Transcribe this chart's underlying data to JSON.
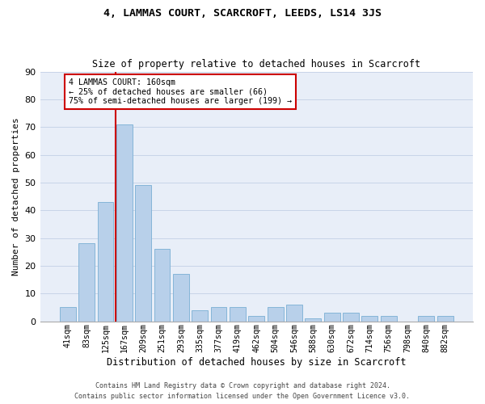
{
  "title": "4, LAMMAS COURT, SCARCROFT, LEEDS, LS14 3JS",
  "subtitle": "Size of property relative to detached houses in Scarcroft",
  "xlabel": "Distribution of detached houses by size in Scarcroft",
  "ylabel": "Number of detached properties",
  "categories": [
    "41sqm",
    "83sqm",
    "125sqm",
    "167sqm",
    "209sqm",
    "251sqm",
    "293sqm",
    "335sqm",
    "377sqm",
    "419sqm",
    "462sqm",
    "504sqm",
    "546sqm",
    "588sqm",
    "630sqm",
    "672sqm",
    "714sqm",
    "756sqm",
    "798sqm",
    "840sqm",
    "882sqm"
  ],
  "values": [
    5,
    28,
    43,
    71,
    49,
    26,
    17,
    4,
    5,
    5,
    2,
    5,
    6,
    1,
    3,
    3,
    2,
    2,
    0,
    2,
    2
  ],
  "bar_color": "#b8d0ea",
  "bar_edge_color": "#7aafd4",
  "grid_color": "#c8d4e8",
  "background_color": "#e8eef8",
  "vline_color": "#cc0000",
  "annotation_text": "4 LAMMAS COURT: 160sqm\n← 25% of detached houses are smaller (66)\n75% of semi-detached houses are larger (199) →",
  "annotation_box_color": "#cc0000",
  "ylim": [
    0,
    90
  ],
  "yticks": [
    0,
    10,
    20,
    30,
    40,
    50,
    60,
    70,
    80,
    90
  ],
  "footer_line1": "Contains HM Land Registry data © Crown copyright and database right 2024.",
  "footer_line2": "Contains public sector information licensed under the Open Government Licence v3.0."
}
